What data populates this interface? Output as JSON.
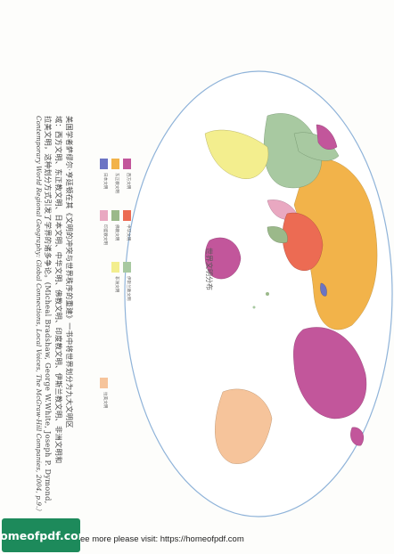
{
  "page": {
    "map_title": "世界文明分布",
    "caption_lines": [
      "美国学者萨缪尔·亨廷顿在其《文明的冲突与世界秩序的重建》一书中将世界划分为九大文明区",
      "域：西方文明、东正教文明、日本文明、中华文明、佛教文明、印度教文明、伊斯兰教文明、非洲文明和",
      "拉美文明，这种划分方式引发了学界的诸多争论。(Micheal Bradshaw, George W.White, Joseph P. Dymond,"
    ],
    "caption_en": "Contemporary World Regional Geography: Global Connections, Local Voices, The McGraw-Hill Companies, 2004, p.9.）",
    "legend": [
      {
        "label": "西方文明",
        "color": "#c2569b"
      },
      {
        "label": "东正教文明",
        "color": "#f2b34a"
      },
      {
        "label": "日本文明",
        "color": "#6b74c4"
      },
      {
        "label": "中华文明",
        "color": "#ec6b53"
      },
      {
        "label": "佛教文明",
        "color": "#9bb98a"
      },
      {
        "label": "印度教文明",
        "color": "#e9a8c1"
      },
      {
        "label": "伊斯兰教文明",
        "color": "#a8c9a1"
      },
      {
        "label": "非洲文明",
        "color": "#f3ee8e"
      },
      {
        "label": "拉美文明",
        "color": "#f6c49b"
      }
    ]
  },
  "footer": {
    "logo_text": "homeofpdf.com",
    "text": "ee more please visit: https://homeofpdf.com"
  }
}
